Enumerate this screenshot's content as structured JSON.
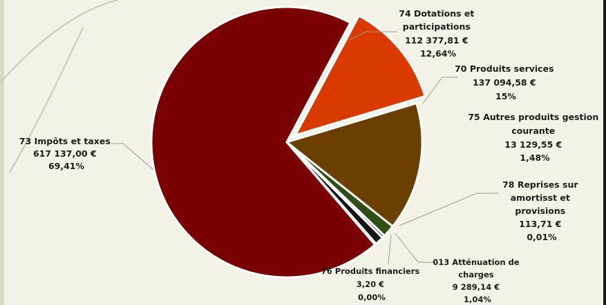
{
  "chart_data": {
    "type": "pie",
    "slices": [
      {
        "label": "73 Impôts et taxes",
        "value": 617137.0,
        "value_text": "617 137,00 €",
        "percent_text": "69,41%",
        "color": "#7a0101"
      },
      {
        "label": "74 Dotations et participations",
        "value": 112377.81,
        "value_text": "112 377,81 €",
        "percent_text": "12,64%",
        "color": "#d93a00"
      },
      {
        "label": "70 Produits services",
        "value": 137094.58,
        "value_text": "137 094,58 €",
        "percent_text": "15%",
        "color": "#6b3f00"
      },
      {
        "label": "75 Autres produits gestion courante",
        "value": 13129.55,
        "value_text": "13 129,55 €",
        "percent_text": "1,48%",
        "color": "#2f4f17"
      },
      {
        "label": "78 Reprises sur amortisst et provisions",
        "value": 113.71,
        "value_text": "113,71 €",
        "percent_text": "0,01%",
        "color": "#3a2a1a"
      },
      {
        "label": "013 Atténuation de charges",
        "value": 9289.14,
        "value_text": "9 289,14 €",
        "percent_text": "1,04%",
        "color": "#151515"
      },
      {
        "label": "76 Produits financiers",
        "value": 3.2,
        "value_text": "3,20 €",
        "percent_text": "0,00%",
        "color": "#000000"
      }
    ]
  }
}
